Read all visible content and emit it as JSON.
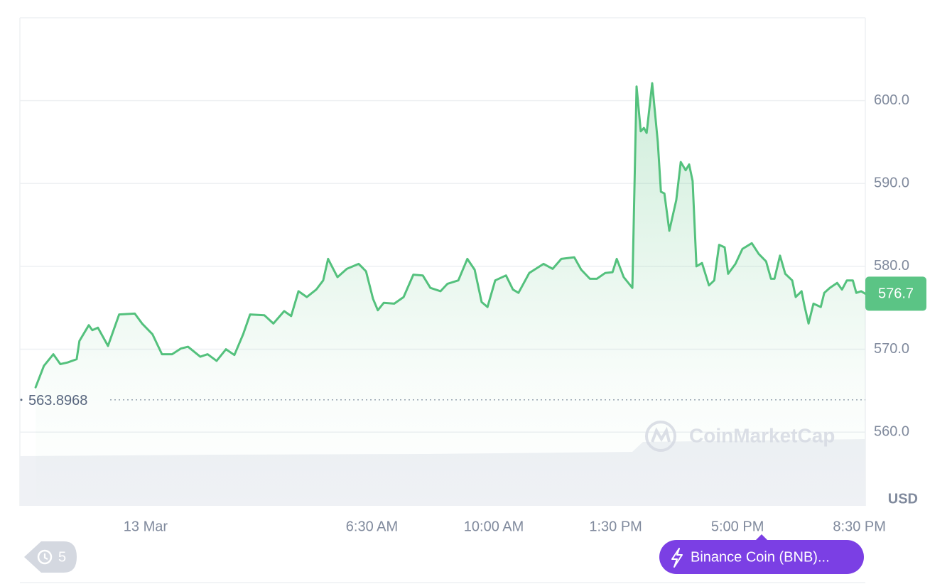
{
  "chart_data": {
    "type": "line",
    "x": [
      -3.16,
      -2.92,
      -2.65,
      -2.45,
      -2.24,
      -1.98,
      -1.9,
      -1.63,
      -1.53,
      -1.37,
      -1.08,
      -0.76,
      -0.31,
      -0.1,
      0.2,
      0.47,
      0.76,
      1.02,
      1.22,
      1.57,
      1.78,
      2.04,
      2.31,
      2.55,
      2.8,
      3.0,
      3.41,
      3.67,
      3.98,
      4.18,
      4.39,
      4.63,
      4.9,
      5.1,
      5.24,
      5.51,
      5.78,
      6.12,
      6.33,
      6.53,
      6.67,
      6.84,
      7.14,
      7.41,
      7.69,
      7.96,
      8.18,
      8.47,
      8.67,
      8.98,
      9.24,
      9.45,
      9.65,
      9.82,
      10.04,
      10.35,
      10.55,
      10.71,
      11.02,
      11.43,
      11.69,
      11.94,
      12.31,
      12.51,
      12.76,
      12.96,
      13.2,
      13.41,
      13.53,
      13.73,
      13.98,
      14.1,
      14.22,
      14.31,
      14.39,
      14.55,
      14.71,
      14.8,
      14.9,
      15.04,
      15.24,
      15.37,
      15.51,
      15.61,
      15.71,
      15.82,
      15.98,
      16.18,
      16.33,
      16.47,
      16.63,
      16.73,
      16.94,
      17.14,
      17.41,
      17.61,
      17.82,
      17.96,
      18.06,
      18.22,
      18.37,
      18.57,
      18.67,
      18.84,
      18.92,
      19.04,
      19.18,
      19.39,
      19.49,
      19.65,
      19.86,
      20.0,
      20.14,
      20.31,
      20.41,
      20.55,
      20.67
    ],
    "series": [
      {
        "name": "Binance Coin (BNB)...",
        "color": "#54c17d",
        "values": [
          565.4,
          568.0,
          569.4,
          568.2,
          568.4,
          568.8,
          571.0,
          572.9,
          572.3,
          572.6,
          570.4,
          574.2,
          574.3,
          573.1,
          571.8,
          569.4,
          569.4,
          570.1,
          570.3,
          569.1,
          569.4,
          568.6,
          570.0,
          569.3,
          571.8,
          574.2,
          574.1,
          573.1,
          574.6,
          574.0,
          577.0,
          576.3,
          577.2,
          578.3,
          580.9,
          578.7,
          579.7,
          580.3,
          579.4,
          576.1,
          574.7,
          575.6,
          575.5,
          576.3,
          579.0,
          578.9,
          577.4,
          577.0,
          577.9,
          578.3,
          580.9,
          579.6,
          575.7,
          575.1,
          578.3,
          578.9,
          577.2,
          576.8,
          579.2,
          580.3,
          579.7,
          580.9,
          581.1,
          579.6,
          578.5,
          578.5,
          579.2,
          579.3,
          580.9,
          578.7,
          577.4,
          601.7,
          596.3,
          596.7,
          596.1,
          602.1,
          595.0,
          589.0,
          588.8,
          584.3,
          588.0,
          592.6,
          591.6,
          592.3,
          590.3,
          580.0,
          580.4,
          577.7,
          578.3,
          582.6,
          582.3,
          579.1,
          580.3,
          582.1,
          582.8,
          581.5,
          580.6,
          578.5,
          578.5,
          581.3,
          579.1,
          578.3,
          576.3,
          577.0,
          575.3,
          573.1,
          575.5,
          575.1,
          576.8,
          577.4,
          578.0,
          577.2,
          578.3,
          578.3,
          576.8,
          577.0,
          576.7
        ]
      }
    ],
    "xlim": [
      -3.61,
      20.67
    ],
    "xticks": [
      {
        "value": 0,
        "label": "13 Mar"
      },
      {
        "value": 6.5,
        "label": "6:30 AM"
      },
      {
        "value": 10,
        "label": "10:00 AM"
      },
      {
        "value": 13.5,
        "label": "1:30 PM"
      },
      {
        "value": 17,
        "label": "5:00 PM"
      },
      {
        "value": 20.5,
        "label": "8:30 PM"
      }
    ],
    "ylim": [
      551.1,
      610.0
    ],
    "yticks": [
      {
        "value": 560,
        "label": "560.0"
      },
      {
        "value": 570,
        "label": "570.0"
      },
      {
        "value": 580,
        "label": "580.0"
      },
      {
        "value": 590,
        "label": "590.0"
      },
      {
        "value": 600,
        "label": "600.0"
      }
    ],
    "grid": true,
    "y_unit": "USD",
    "open_price": 563.8968,
    "current_price": 576.7,
    "current_price_color": "#5bc485",
    "watermark": "CoinMarketCap",
    "history_count": 5
  }
}
